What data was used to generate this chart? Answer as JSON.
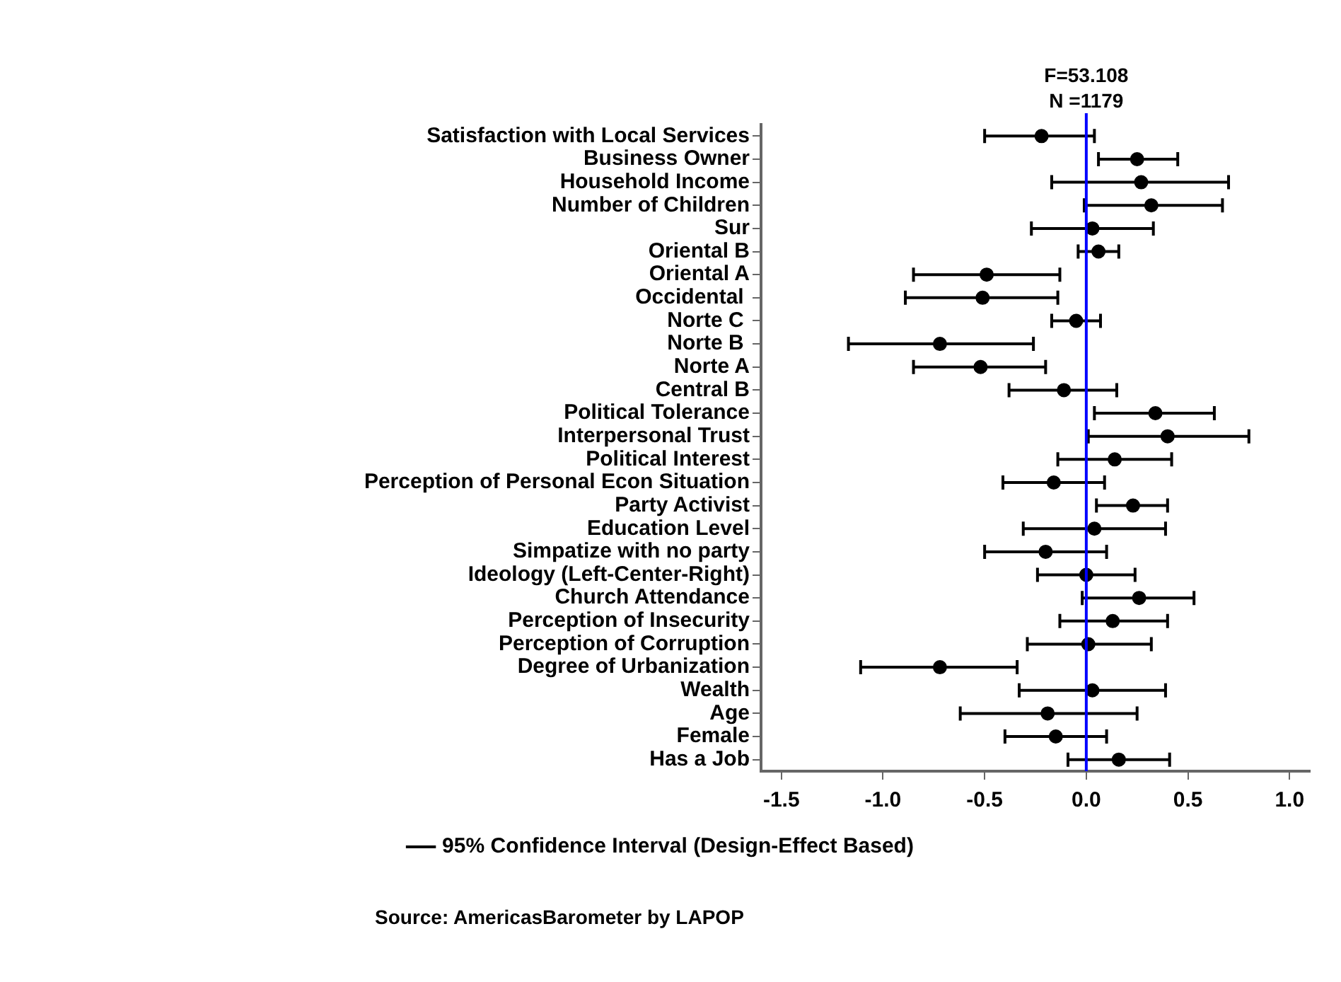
{
  "chart_data": {
    "type": "scatter",
    "orientation": "horizontal",
    "categories": [
      "Satisfaction with Local Services",
      "Business Owner",
      "Household Income",
      "Number of Children",
      "Sur",
      "Oriental B",
      "Oriental A",
      "Occidental ",
      "Norte C ",
      "Norte B ",
      "Norte A",
      "Central B",
      "Political Tolerance",
      "Interpersonal Trust",
      "Political Interest",
      "Perception of Personal Econ Situation",
      "Party Activist",
      "Education Level",
      "Simpatize with no party",
      "Ideology (Left-Center-Right)",
      "Church Attendance",
      "Perception of Insecurity",
      "Perception of Corruption",
      "Degree of Urbanization",
      "Wealth",
      "Age",
      "Female",
      "Has a Job"
    ],
    "series": [
      {
        "name": "95% Confidence Interval (Design-Effect Based)",
        "color": "#000000",
        "values": [
          -0.22,
          0.25,
          0.27,
          0.32,
          0.03,
          0.06,
          -0.49,
          -0.51,
          -0.05,
          -0.72,
          -0.52,
          -0.11,
          0.34,
          0.4,
          0.14,
          -0.16,
          0.23,
          0.04,
          -0.2,
          0.0,
          0.26,
          0.13,
          0.01,
          -0.72,
          0.03,
          -0.19,
          -0.15,
          0.16
        ],
        "errors": [
          [
            -0.5,
            0.04
          ],
          [
            0.06,
            0.45
          ],
          [
            -0.17,
            0.7
          ],
          [
            -0.01,
            0.67
          ],
          [
            -0.27,
            0.33
          ],
          [
            -0.04,
            0.16
          ],
          [
            -0.85,
            -0.13
          ],
          [
            -0.89,
            -0.14
          ],
          [
            -0.17,
            0.07
          ],
          [
            -1.17,
            -0.26
          ],
          [
            -0.85,
            -0.2
          ],
          [
            -0.38,
            0.15
          ],
          [
            0.04,
            0.63
          ],
          [
            0.01,
            0.8
          ],
          [
            -0.14,
            0.42
          ],
          [
            -0.41,
            0.09
          ],
          [
            0.05,
            0.4
          ],
          [
            -0.31,
            0.39
          ],
          [
            -0.5,
            0.1
          ],
          [
            -0.24,
            0.24
          ],
          [
            -0.02,
            0.53
          ],
          [
            -0.13,
            0.4
          ],
          [
            -0.29,
            0.32
          ],
          [
            -1.11,
            -0.34
          ],
          [
            -0.33,
            0.39
          ],
          [
            -0.62,
            0.25
          ],
          [
            -0.4,
            0.1
          ],
          [
            -0.09,
            0.41
          ]
        ]
      }
    ],
    "xlim": [
      -1.6,
      1.1
    ],
    "xticks": [
      -1.5,
      {
        "value": -1,
        "label": "-1.0"
      },
      -0.5,
      {
        "value": 0,
        "label": "0.0"
      },
      0.5,
      {
        "value": 1,
        "label": "1.0"
      }
    ],
    "ref_lines": [
      {
        "axis": "x",
        "value": 0,
        "color": "#0000ff"
      }
    ],
    "annotations": [
      "F=53.108",
      "N =1179",
      "Source: AmericasBarometer by LAPOP"
    ],
    "marker": "circle",
    "legend": "bottom",
    "grid": false
  }
}
